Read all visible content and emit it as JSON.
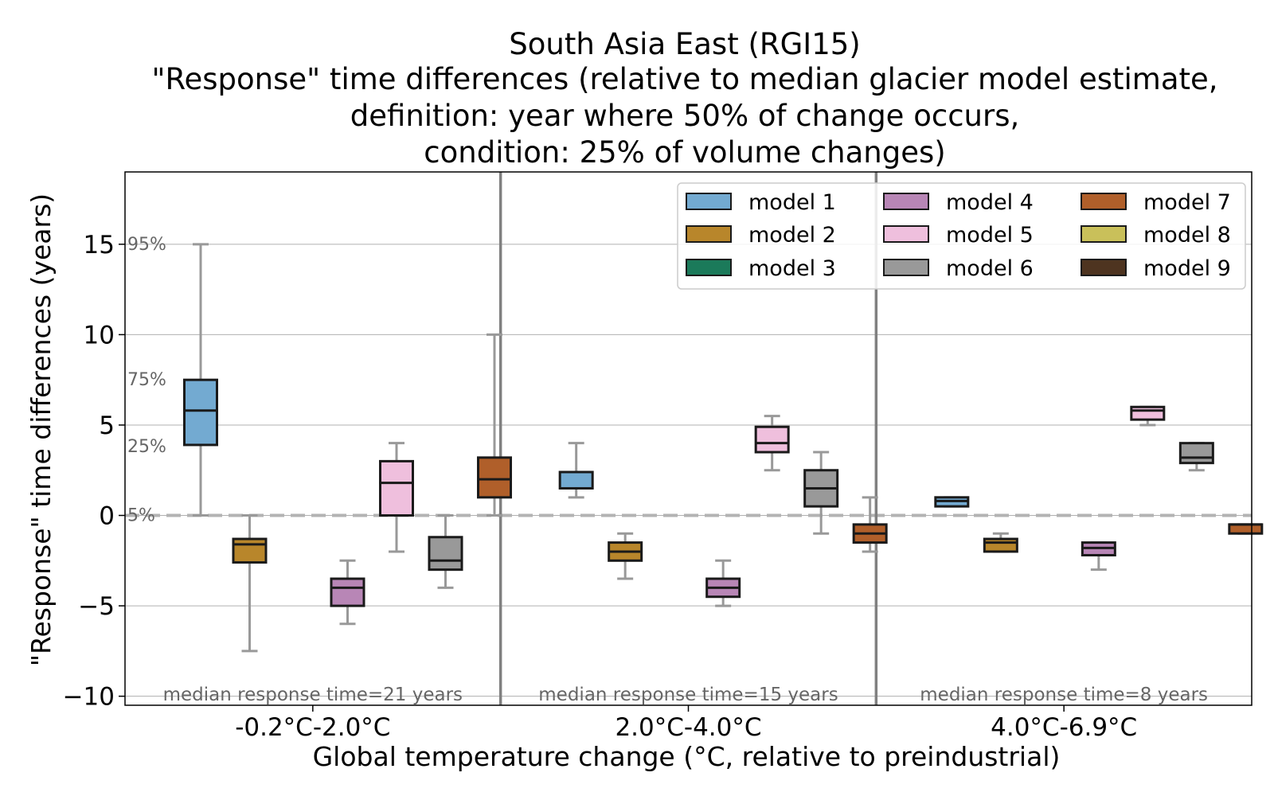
{
  "chart_data": {
    "type": "box",
    "title": [
      "South Asia East (RGI15)",
      "\"Response\" time differences (relative to median glacier model estimate,",
      "definition: year where 50% of change occurs,",
      "condition: 25% of volume changes)"
    ],
    "xlabel": "Global temperature change (°C, relative to preindustrial)",
    "ylabel": "\"Response\" time differences (years)",
    "ylim": [
      -10.5,
      19
    ],
    "yticks": [
      -10,
      -5,
      0,
      5,
      10,
      15
    ],
    "ytick_labels": [
      "−10",
      "−5",
      "0",
      "5",
      "10",
      "15"
    ],
    "grid": "horizontal",
    "reference_line": 0,
    "percentile_labels": [
      {
        "text": "95%",
        "y": 15
      },
      {
        "text": "75%",
        "y": 7.5
      },
      {
        "text": "25%",
        "y": 3.8
      },
      {
        "text": "5%",
        "y": 0
      }
    ],
    "legend": {
      "placement": "top-right",
      "entries": [
        {
          "name": "model 1",
          "color": "#73aad1"
        },
        {
          "name": "model 2",
          "color": "#b8862b"
        },
        {
          "name": "model 3",
          "color": "#1b7a5a"
        },
        {
          "name": "model 4",
          "color": "#b886b6"
        },
        {
          "name": "model 5",
          "color": "#efbfdd"
        },
        {
          "name": "model 6",
          "color": "#999999"
        },
        {
          "name": "model 7",
          "color": "#b05f2a"
        },
        {
          "name": "model 8",
          "color": "#c9c05a"
        },
        {
          "name": "model 9",
          "color": "#4e3420"
        }
      ]
    },
    "groups": [
      {
        "label": "-0.2°C-2.0°C",
        "note": "median response time=21 years",
        "boxes": [
          {
            "model": 1,
            "p5": 0,
            "q1": 3.9,
            "median": 5.8,
            "q3": 7.5,
            "p95": 15
          },
          {
            "model": 2,
            "p5": -7.5,
            "q1": -2.6,
            "median": -1.6,
            "q3": -1.3,
            "p95": 0
          },
          {
            "model": 4,
            "p5": -6,
            "q1": -5,
            "median": -4,
            "q3": -3.5,
            "p95": -2.5
          },
          {
            "model": 5,
            "p5": -2,
            "q1": 0,
            "median": 1.8,
            "q3": 3,
            "p95": 4
          },
          {
            "model": 6,
            "p5": -4,
            "q1": -3,
            "median": -2.5,
            "q3": -1.2,
            "p95": 0
          },
          {
            "model": 7,
            "p5": 0,
            "q1": 1,
            "median": 2,
            "q3": 3.2,
            "p95": 10
          }
        ]
      },
      {
        "label": "2.0°C-4.0°C",
        "note": "median response time=15 years",
        "boxes": [
          {
            "model": 1,
            "p5": 1,
            "q1": 1.5,
            "median": 1.5,
            "q3": 2.4,
            "p95": 4
          },
          {
            "model": 2,
            "p5": -3.5,
            "q1": -2.5,
            "median": -2,
            "q3": -1.5,
            "p95": -1
          },
          {
            "model": 4,
            "p5": -5,
            "q1": -4.5,
            "median": -4,
            "q3": -3.5,
            "p95": -2.5
          },
          {
            "model": 5,
            "p5": 2.5,
            "q1": 3.5,
            "median": 4,
            "q3": 4.9,
            "p95": 5.5
          },
          {
            "model": 6,
            "p5": -1,
            "q1": 0.5,
            "median": 1.5,
            "q3": 2.5,
            "p95": 3.5
          },
          {
            "model": 7,
            "p5": -2,
            "q1": -1.5,
            "median": -1,
            "q3": -0.5,
            "p95": 1
          }
        ]
      },
      {
        "label": "4.0°C-6.9°C",
        "note": "median response time=8 years",
        "boxes": [
          {
            "model": 1,
            "p5": 0.5,
            "q1": 0.5,
            "median": 0.8,
            "q3": 1,
            "p95": 1
          },
          {
            "model": 2,
            "p5": -2,
            "q1": -2,
            "median": -1.5,
            "q3": -1.3,
            "p95": -1
          },
          {
            "model": 4,
            "p5": -3,
            "q1": -2.2,
            "median": -1.8,
            "q3": -1.5,
            "p95": -1.5
          },
          {
            "model": 5,
            "p5": 5,
            "q1": 5.3,
            "median": 5.8,
            "q3": 6,
            "p95": 6
          },
          {
            "model": 6,
            "p5": 2.5,
            "q1": 2.9,
            "median": 3.2,
            "q3": 4,
            "p95": 4
          },
          {
            "model": 7,
            "p5": -1,
            "q1": -1,
            "median": -0.5,
            "q3": -0.5,
            "p95": -0.5
          }
        ]
      }
    ]
  }
}
